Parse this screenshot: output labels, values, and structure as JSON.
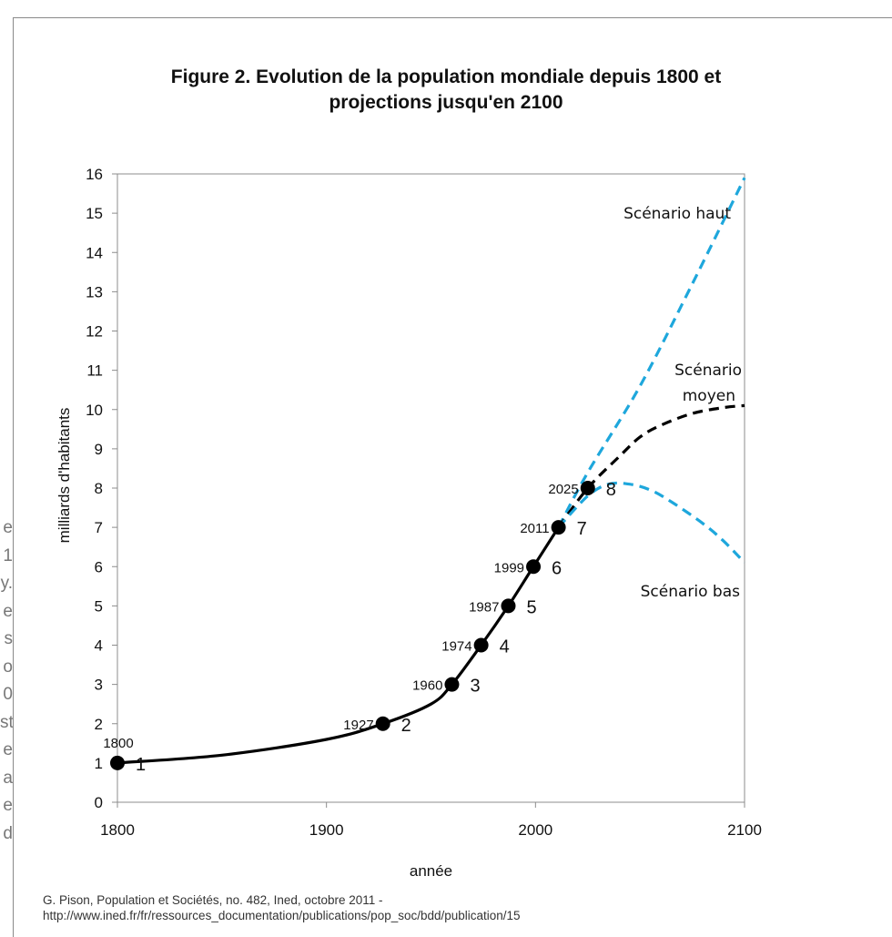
{
  "side_text": [
    "e",
    "1",
    "y.",
    "e",
    "s",
    "o",
    "0",
    "st",
    "e",
    "a",
    "e",
    "d"
  ],
  "title_lines": [
    "Figure 2. Evolution de la population mondiale depuis 1800 et",
    "projections jusqu'en 2100"
  ],
  "source_lines": [
    "G. Pison, Population et Sociétés, no. 482, Ined, octobre 2011 -",
    "http://www.ined.fr/fr/ressources_documentation/publications/pop_soc/bdd/publication/15"
  ],
  "chart_data": {
    "type": "line",
    "xlabel": "année",
    "ylabel": "milliards d'habitants",
    "xlim": [
      1800,
      2100
    ],
    "ylim": [
      0,
      16
    ],
    "xticks": [
      1800,
      1900,
      2000,
      2100
    ],
    "yticks": [
      0,
      1,
      2,
      3,
      4,
      5,
      6,
      7,
      8,
      9,
      10,
      11,
      12,
      13,
      14,
      15,
      16
    ],
    "grid": false,
    "colors": {
      "historical": "#000000",
      "medium": "#000000",
      "high": "#1ea7dc",
      "low": "#1ea7dc"
    },
    "historical": {
      "x": [
        1800,
        1850,
        1900,
        1927,
        1950,
        1960,
        1974,
        1987,
        1999,
        2011
      ],
      "y": [
        1,
        1.2,
        1.6,
        2,
        2.5,
        3,
        4,
        5,
        6,
        7
      ]
    },
    "milestones": [
      {
        "year": 1800,
        "value": 1,
        "year_label": "1800",
        "value_label": "1"
      },
      {
        "year": 1927,
        "value": 2,
        "year_label": "1927",
        "value_label": "2"
      },
      {
        "year": 1960,
        "value": 3,
        "year_label": "1960",
        "value_label": "3"
      },
      {
        "year": 1974,
        "value": 4,
        "year_label": "1974",
        "value_label": "4"
      },
      {
        "year": 1987,
        "value": 5,
        "year_label": "1987",
        "value_label": "5"
      },
      {
        "year": 1999,
        "value": 6,
        "year_label": "1999",
        "value_label": "6"
      },
      {
        "year": 2011,
        "value": 7,
        "year_label": "2011",
        "value_label": "7"
      },
      {
        "year": 2025,
        "value": 8,
        "year_label": "2025",
        "value_label": "8"
      }
    ],
    "scenarios": [
      {
        "name": "Scénario haut",
        "key": "high",
        "x": [
          2011,
          2025,
          2050,
          2075,
          2100
        ],
        "y": [
          7,
          8.4,
          10.6,
          13.2,
          15.9
        ]
      },
      {
        "name": "Scénario moyen",
        "key": "medium",
        "x": [
          2011,
          2025,
          2040,
          2050,
          2060,
          2075,
          2090,
          2100
        ],
        "y": [
          7,
          8,
          8.8,
          9.3,
          9.6,
          9.9,
          10.05,
          10.1
        ]
      },
      {
        "name": "Scénario bas",
        "key": "low",
        "x": [
          2011,
          2025,
          2035,
          2045,
          2055,
          2065,
          2080,
          2090,
          2100
        ],
        "y": [
          7,
          7.8,
          8.1,
          8.1,
          7.95,
          7.65,
          7.1,
          6.65,
          6.1
        ]
      }
    ],
    "scenario_labels": {
      "high": [
        "Scénario haut"
      ],
      "medium": [
        "Scénario",
        "moyen"
      ],
      "low": [
        "Scénario bas"
      ]
    }
  }
}
